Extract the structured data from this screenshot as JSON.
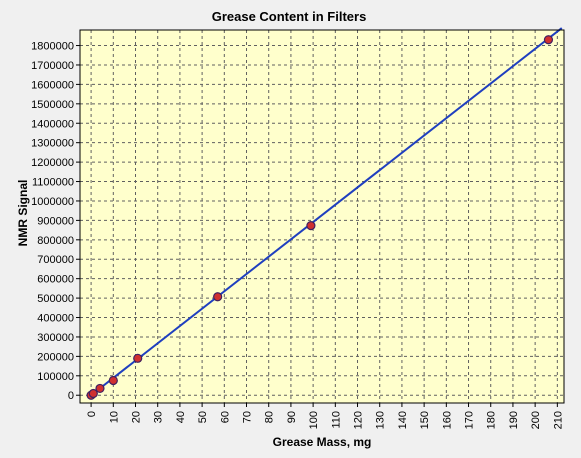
{
  "chart_data": {
    "type": "scatter",
    "title": "Grease Content in Filters",
    "xlabel": "Grease Mass, mg",
    "ylabel": "NMR Signal",
    "xlim": [
      -5,
      213
    ],
    "ylim": [
      -40000,
      1880000
    ],
    "x_ticks": [
      0,
      10,
      20,
      30,
      40,
      50,
      60,
      70,
      80,
      90,
      100,
      110,
      120,
      130,
      140,
      150,
      160,
      170,
      180,
      190,
      200,
      210
    ],
    "y_ticks": [
      0,
      100000,
      200000,
      300000,
      400000,
      500000,
      600000,
      700000,
      800000,
      900000,
      1000000,
      1100000,
      1200000,
      1300000,
      1400000,
      1500000,
      1600000,
      1700000,
      1800000
    ],
    "grid": true,
    "points": [
      {
        "x": 0,
        "y": 0
      },
      {
        "x": 1,
        "y": 9000
      },
      {
        "x": 4,
        "y": 35000
      },
      {
        "x": 10,
        "y": 76000
      },
      {
        "x": 21,
        "y": 190000
      },
      {
        "x": 57,
        "y": 507000
      },
      {
        "x": 99,
        "y": 873000
      },
      {
        "x": 206,
        "y": 1830000
      }
    ],
    "fit_line": {
      "x": [
        0,
        212
      ],
      "y": [
        0,
        1890000
      ]
    },
    "colors": {
      "plot_background": "#ffffcc",
      "grid": "#606060",
      "line": "#1f3fbf",
      "marker_fill": "#d03030",
      "marker_stroke": "#402060"
    }
  }
}
